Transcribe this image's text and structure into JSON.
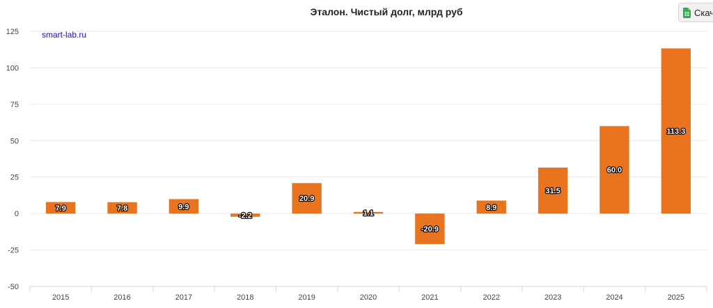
{
  "header": {
    "title": "Эталон. Чистый долг, млрд руб",
    "download_label": "Скач",
    "download_icon": "spreadsheet-icon"
  },
  "credit": "smart-lab.ru",
  "colors": {
    "bar": "#e87420",
    "grid": "#e6e6e6",
    "icon": "#34a853"
  },
  "chart_data": {
    "type": "bar",
    "title": "Эталон. Чистый долг, млрд руб",
    "xlabel": "",
    "ylabel": "",
    "categories": [
      "2015",
      "2016",
      "2017",
      "2018",
      "2019",
      "2020",
      "2021",
      "2022",
      "2023",
      "2024",
      "2025"
    ],
    "values": [
      7.9,
      7.8,
      9.9,
      -2.2,
      20.9,
      1.1,
      -20.9,
      8.9,
      31.5,
      60.0,
      113.3
    ],
    "value_labels": [
      "7.9",
      "7.8",
      "9.9",
      "-2.2",
      "20.9",
      "1.1",
      "-20.9",
      "8.9",
      "31.5",
      "60.0",
      "113.3"
    ],
    "ylim": [
      -50,
      125
    ],
    "yticks": [
      -50,
      -25,
      0,
      25,
      50,
      75,
      100,
      125
    ],
    "grid": true,
    "legend": "none"
  }
}
